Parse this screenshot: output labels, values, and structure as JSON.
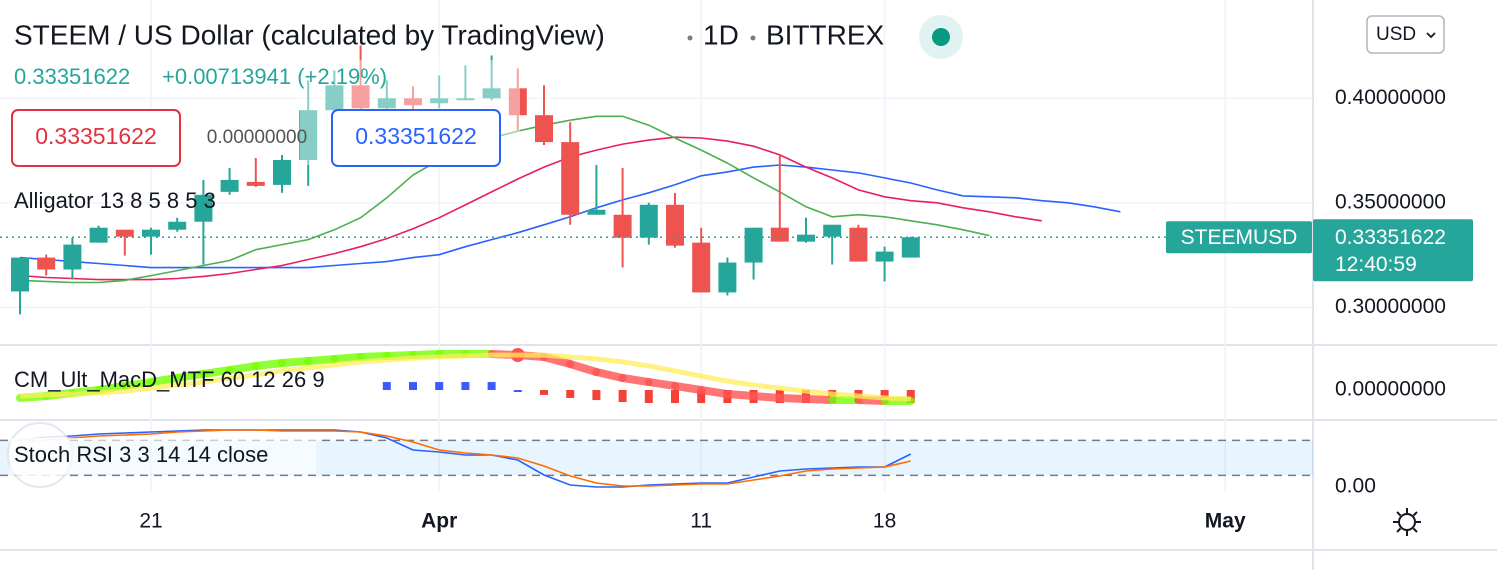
{
  "header": {
    "title": "STEEM / US Dollar (calculated by TradingView)",
    "interval": "1D",
    "exchange": "BITTREX",
    "price": "0.33351622",
    "change": "+0.00713941 (+2.19%)",
    "bid": "0.33351622",
    "spread": "0.00000000",
    "ask": "0.33351622",
    "currency": "USD"
  },
  "chart_data": [
    {
      "type": "candlestick",
      "indicator": "Alligator 13 8 5 8 5 3",
      "categories": [
        null,
        null,
        null,
        null,
        null,
        "21",
        null,
        null,
        null,
        null,
        null,
        null,
        null,
        null,
        null,
        null,
        "Apr",
        null,
        null,
        null,
        null,
        null,
        null,
        null,
        null,
        null,
        "11",
        null,
        null,
        null,
        null,
        null,
        null,
        "18",
        null,
        null,
        null,
        null,
        null,
        null,
        null,
        null,
        null,
        null,
        null,
        null,
        "May",
        null,
        null,
        null
      ],
      "open": [
        0.30762,
        0.32381,
        0.3181,
        0.33095,
        0.33714,
        0.33381,
        0.33714,
        0.34095,
        0.35524,
        0.36,
        0.35857,
        0.37048,
        0.39429,
        0.40619,
        0.39524,
        0.4,
        0.39762,
        0.39905,
        0.4,
        0.40476,
        0.3919,
        0.37905,
        0.34429,
        0.34429,
        0.33333,
        0.34905,
        0.33095,
        0.30714,
        0.32143,
        0.3381,
        0.33143,
        0.33381,
        0.3381,
        0.3219,
        0.32381,
        null,
        null,
        null,
        null,
        null,
        null,
        null,
        null,
        null,
        null,
        null,
        null,
        null,
        null,
        null
      ],
      "high": [
        0.32381,
        0.32524,
        0.33333,
        0.33905,
        0.33714,
        0.3381,
        0.34286,
        0.36095,
        0.36667,
        0.37143,
        0.37286,
        0.40857,
        0.41333,
        0.42524,
        0.40857,
        0.40571,
        0.41095,
        0.41571,
        0.42048,
        0.41429,
        0.40619,
        0.38857,
        0.3681,
        0.36667,
        0.35,
        0.35476,
        0.3381,
        0.32381,
        0.3381,
        0.37286,
        0.34286,
        0.33952,
        0.33952,
        0.32905,
        0.33381,
        null,
        null,
        null,
        null,
        null,
        null,
        null,
        null,
        null,
        null,
        null,
        null,
        null,
        null,
        null
      ],
      "low": [
        0.29667,
        0.31524,
        0.31333,
        0.33095,
        0.32476,
        0.32524,
        0.33619,
        0.32048,
        0.35381,
        0.35762,
        0.35476,
        0.3581,
        0.3919,
        0.3919,
        0.39048,
        0.39333,
        0.39524,
        0.39905,
        0.39905,
        0.38476,
        0.37762,
        0.33952,
        0.34429,
        0.31905,
        0.33,
        0.32857,
        0.30714,
        0.30571,
        0.31333,
        0.33143,
        0.33095,
        0.32048,
        0.3219,
        0.31238,
        0.32381,
        null,
        null,
        null,
        null,
        null,
        null,
        null,
        null,
        null,
        null,
        null,
        null,
        null,
        null,
        null
      ],
      "close": [
        0.32381,
        0.3181,
        0.33,
        0.3381,
        0.33381,
        0.33714,
        0.34095,
        0.35381,
        0.36095,
        0.3581,
        0.37048,
        0.39429,
        0.40619,
        0.39524,
        0.4,
        0.39667,
        0.4,
        0.4,
        0.40476,
        0.3919,
        0.37905,
        0.34429,
        0.34667,
        0.33333,
        0.34905,
        0.32952,
        0.30714,
        0.32143,
        0.3381,
        0.33143,
        0.33476,
        0.33952,
        0.3219,
        0.32667,
        0.33351622,
        null,
        null,
        null,
        null,
        null,
        null,
        null,
        null,
        null,
        null,
        null,
        null,
        null,
        null,
        null
      ],
      "color_up": "#26a69a",
      "color_down": "#ef5350",
      "series": [
        {
          "color": "#2962ff",
          "values": [
            0.3238,
            0.3229,
            0.3219,
            0.321,
            0.32,
            0.319,
            0.319,
            0.319,
            0.319,
            0.319,
            0.319,
            0.319,
            0.32,
            0.321,
            0.3219,
            0.3238,
            0.3252,
            0.329,
            0.3324,
            0.3357,
            0.3395,
            0.3433,
            0.3476,
            0.3514,
            0.3548,
            0.3586,
            0.3629,
            0.3648,
            0.3671,
            0.3681,
            0.3671,
            0.3657,
            0.3643,
            0.3619,
            0.3595,
            0.3562,
            0.3533,
            0.3529,
            0.3524,
            0.351,
            0.35,
            0.3481,
            0.3457,
            null,
            null,
            null,
            null,
            null,
            null,
            null
          ]
        },
        {
          "color": "#e91e63",
          "values": [
            0.3152,
            0.3143,
            0.3138,
            0.3133,
            0.3133,
            0.3133,
            0.3138,
            0.3148,
            0.3162,
            0.3181,
            0.32,
            0.3229,
            0.3257,
            0.329,
            0.3329,
            0.3376,
            0.3429,
            0.349,
            0.3552,
            0.3614,
            0.3671,
            0.3719,
            0.3752,
            0.3781,
            0.38,
            0.3814,
            0.381,
            0.3795,
            0.3771,
            0.3729,
            0.3671,
            0.3619,
            0.3562,
            0.3529,
            0.351,
            0.35,
            0.3476,
            0.3457,
            0.3433,
            0.3414,
            null,
            null,
            null,
            null,
            null,
            null,
            null,
            null,
            null,
            null
          ]
        },
        {
          "color": "#4caf50",
          "values": [
            0.3129,
            0.3124,
            0.3119,
            0.3119,
            0.3129,
            0.3152,
            0.3176,
            0.32,
            0.3224,
            0.3276,
            0.33,
            0.3324,
            0.3371,
            0.3429,
            0.3524,
            0.3633,
            0.3705,
            0.3762,
            0.381,
            0.3843,
            0.3871,
            0.3895,
            0.3914,
            0.3914,
            0.3871,
            0.381,
            0.3752,
            0.369,
            0.3619,
            0.3552,
            0.3481,
            0.3433,
            0.3443,
            0.3433,
            0.3414,
            0.3395,
            0.3371,
            0.3343,
            null,
            null,
            null,
            null,
            null,
            null,
            null,
            null,
            null,
            null,
            null,
            null
          ]
        }
      ],
      "ylim": [
        0.282,
        0.447
      ],
      "yticks": [
        {
          "value": 0.3,
          "label": "0.30000000"
        },
        {
          "value": 0.35,
          "label": "0.35000000"
        },
        {
          "value": 0.4,
          "label": "0.40000000"
        }
      ],
      "grid": true,
      "last_price": {
        "value": 0.33351622,
        "label": "STEEMUSD",
        "countdown": "12:40:59",
        "color": "#26a69a"
      }
    },
    {
      "type": "line",
      "indicator": "CM_Ult_MacD_MTF 60 12 26 9",
      "series": [
        {
          "color_up": "#76ff03",
          "color_down": "#ff5252",
          "values": [
            -0.0053,
            -0.004,
            -0.002,
            0,
            0.0027,
            0.0053,
            0.008,
            0.0107,
            0.0133,
            0.016,
            0.018,
            0.0193,
            0.0207,
            0.022,
            0.0227,
            0.0233,
            0.024,
            0.024,
            0.024,
            0.0233,
            0.022,
            0.0173,
            0.012,
            0.008,
            0.0053,
            0.0027,
            0,
            -0.0027,
            -0.004,
            -0.0053,
            -0.006,
            -0.0067,
            -0.0067,
            -0.0073,
            -0.0073
          ]
        },
        {
          "color": "#ffee58",
          "values": [
            -0.004,
            -0.0033,
            -0.0027,
            -0.002,
            -0.0007,
            0.0013,
            0.0033,
            0.0053,
            0.008,
            0.01,
            0.0127,
            0.0147,
            0.0167,
            0.0187,
            0.02,
            0.0213,
            0.022,
            0.0227,
            0.0233,
            0.0233,
            0.0233,
            0.022,
            0.0207,
            0.0187,
            0.016,
            0.0127,
            0.0093,
            0.006,
            0.0033,
            0.0013,
            -0.0007,
            -0.0027,
            -0.004,
            -0.0053,
            -0.006
          ]
        }
      ],
      "histogram": {
        "color_up": "#3d5afe",
        "color_down": "#f44336",
        "values": [
          null,
          null,
          null,
          null,
          null,
          null,
          null,
          null,
          null,
          null,
          null,
          null,
          null,
          null,
          0.0053,
          0.0053,
          0.0053,
          0.0053,
          0.0053,
          0,
          -0.0033,
          -0.0053,
          -0.0067,
          -0.008,
          -0.0087,
          -0.0087,
          -0.0087,
          -0.0087,
          -0.0087,
          -0.0087,
          -0.0087,
          -0.0087,
          -0.0087,
          -0.0087,
          -0.0087
        ]
      },
      "ylim": [
        -0.02,
        0.03
      ],
      "yticks": [
        {
          "value": 0,
          "label": "0.00000000"
        }
      ]
    },
    {
      "type": "line",
      "indicator": "Stoch RSI 3 3 14 14 close",
      "series": [
        {
          "color": "#2962ff",
          "values": [
            80.6,
            85.7,
            87.4,
            90.9,
            92.6,
            94.3,
            96.0,
            97.7,
            97.7,
            97.7,
            97.7,
            97.7,
            97.7,
            94.3,
            84.0,
            63.4,
            60.0,
            54.9,
            54.9,
            46.3,
            20.6,
            3.4,
            0,
            0,
            3.4,
            5.1,
            6.9,
            6.9,
            17.1,
            27.4,
            30.9,
            32.6,
            34.3,
            34.3,
            56.6
          ]
        },
        {
          "color": "#ff6d00",
          "values": [
            75.4,
            80.6,
            84.0,
            87.4,
            89.1,
            90.9,
            94.3,
            96.0,
            97.7,
            97.7,
            96.0,
            96.0,
            96.0,
            94.3,
            87.4,
            77.1,
            63.4,
            58.3,
            54.9,
            49.7,
            36.0,
            18.9,
            6.9,
            1.7,
            1.7,
            3.4,
            5.1,
            5.1,
            12.0,
            18.9,
            27.4,
            30.9,
            32.6,
            34.3,
            44.6
          ]
        }
      ],
      "bands": [
        20,
        80
      ],
      "ylim": [
        -8.6,
        111.4
      ],
      "yticks": [
        {
          "value": 0,
          "label": "0.00"
        }
      ]
    }
  ]
}
